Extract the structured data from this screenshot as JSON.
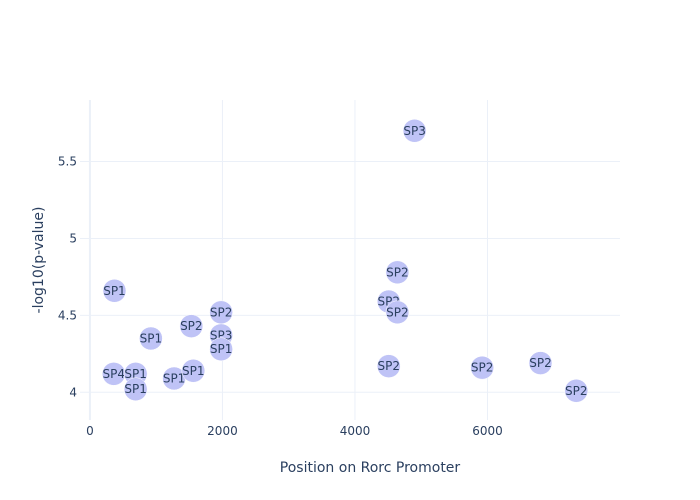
{
  "chart_data": {
    "type": "scatter",
    "xlabel": "Position on Rorc Promoter",
    "ylabel": "-log10(p-value)",
    "xlim": [
      -150,
      8000
    ],
    "ylim": [
      3.82,
      5.9
    ],
    "x_ticks": [
      0,
      2000,
      4000,
      6000
    ],
    "y_ticks": [
      4,
      4.5,
      5,
      5.5
    ],
    "grid": true,
    "marker_color": "#bfc3f6",
    "points": [
      {
        "x": 360,
        "y": 4.12,
        "label": "SP4"
      },
      {
        "x": 690,
        "y": 4.12,
        "label": "SP1"
      },
      {
        "x": 690,
        "y": 4.02,
        "label": "SP1"
      },
      {
        "x": 370,
        "y": 4.66,
        "label": "SP1"
      },
      {
        "x": 920,
        "y": 4.35,
        "label": "SP1"
      },
      {
        "x": 1270,
        "y": 4.09,
        "label": "SP1"
      },
      {
        "x": 1560,
        "y": 4.14,
        "label": "SP1"
      },
      {
        "x": 1530,
        "y": 4.43,
        "label": "SP2"
      },
      {
        "x": 1980,
        "y": 4.52,
        "label": "SP2"
      },
      {
        "x": 1980,
        "y": 4.37,
        "label": "SP3"
      },
      {
        "x": 1980,
        "y": 4.28,
        "label": "SP1"
      },
      {
        "x": 4510,
        "y": 4.17,
        "label": "SP2"
      },
      {
        "x": 4510,
        "y": 4.59,
        "label": "SP2"
      },
      {
        "x": 4640,
        "y": 4.52,
        "label": "SP2"
      },
      {
        "x": 4640,
        "y": 4.78,
        "label": "SP2"
      },
      {
        "x": 4900,
        "y": 5.7,
        "label": "SP3"
      },
      {
        "x": 5920,
        "y": 4.16,
        "label": "SP2"
      },
      {
        "x": 6800,
        "y": 4.19,
        "label": "SP2"
      },
      {
        "x": 7340,
        "y": 4.01,
        "label": "SP2"
      }
    ]
  }
}
